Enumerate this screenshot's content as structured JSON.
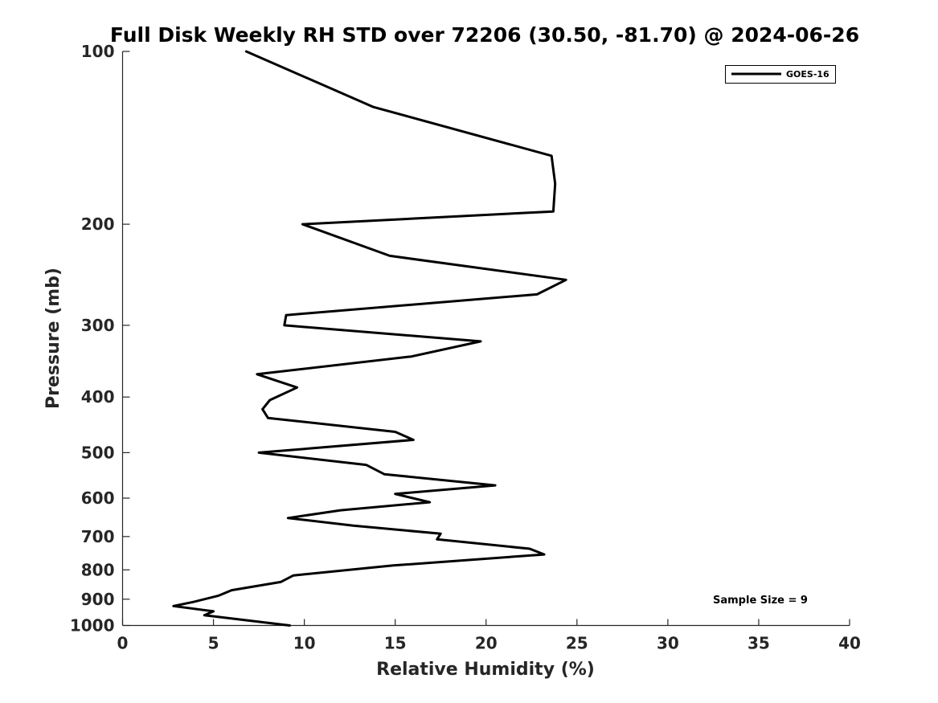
{
  "chart_data": {
    "type": "line",
    "title": "Full Disk Weekly RH STD over 72206 (30.50, -81.70) @ 2024-06-26",
    "xlabel": "Relative Humidity (%)",
    "ylabel": "Pressure (mb)",
    "xlim": [
      0,
      40
    ],
    "ylim": [
      100,
      1000
    ],
    "y_scale": "log",
    "y_reversed": true,
    "grid": false,
    "x_ticks": [
      0,
      5,
      10,
      15,
      20,
      25,
      30,
      35,
      40
    ],
    "x_tick_labels": [
      "0",
      "5",
      "10",
      "15",
      "20",
      "25",
      "30",
      "35",
      "40"
    ],
    "y_ticks": [
      100,
      200,
      300,
      400,
      500,
      600,
      700,
      800,
      900,
      1000
    ],
    "y_tick_labels": [
      "100",
      "200",
      "300",
      "400",
      "500",
      "600",
      "700",
      "800",
      "900",
      "1000"
    ],
    "legend_position": "top-right",
    "annotation": "Sample Size = 9",
    "series": [
      {
        "name": "GOES-16",
        "color": "#000000",
        "x": [
          6.8,
          13.8,
          23.6,
          23.8,
          23.7,
          9.9,
          14.7,
          24.4,
          22.8,
          9.0,
          8.9,
          19.7,
          15.9,
          7.4,
          9.6,
          8.1,
          7.7,
          8.0,
          15.0,
          16.0,
          7.5,
          13.4,
          14.4,
          20.5,
          15.0,
          16.9,
          12.0,
          9.1,
          12.7,
          17.5,
          17.3,
          22.4,
          23.2,
          14.9,
          9.4,
          8.7,
          6.0,
          5.3,
          3.9,
          2.8,
          5.0,
          4.5,
          5.7,
          9.2
        ],
        "y": [
          100,
          125,
          152,
          170,
          190,
          200,
          227,
          250,
          265,
          288,
          300,
          320,
          340,
          365,
          385,
          405,
          420,
          435,
          460,
          475,
          500,
          525,
          545,
          570,
          590,
          610,
          630,
          650,
          670,
          692,
          708,
          735,
          752,
          786,
          818,
          840,
          868,
          887,
          910,
          925,
          945,
          960,
          970,
          1000
        ]
      }
    ]
  }
}
